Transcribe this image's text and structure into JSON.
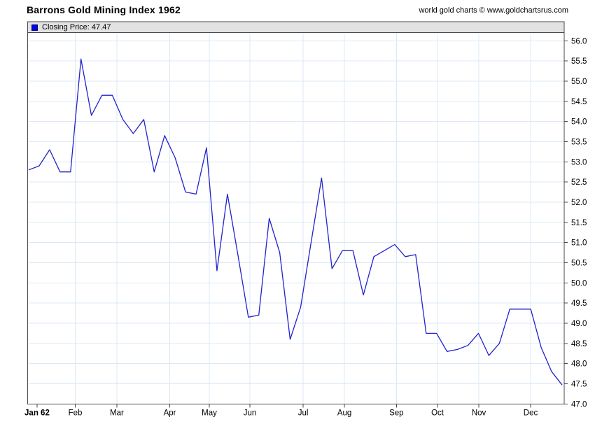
{
  "ui": {
    "title": "Barrons Gold Mining Index 1962",
    "credit": "world gold charts © www.goldchartsrus.com",
    "legend_label": "Closing Price: 47.47"
  },
  "chart_data": {
    "type": "line",
    "title": "Barrons Gold Mining Index 1962",
    "series": [
      {
        "name": "Closing Price",
        "last_value": 47.47,
        "values": [
          52.8,
          52.9,
          53.3,
          52.75,
          52.75,
          55.55,
          54.15,
          54.65,
          54.65,
          54.05,
          53.7,
          54.05,
          52.75,
          53.65,
          53.1,
          52.25,
          52.2,
          53.35,
          50.3,
          52.2,
          50.7,
          49.15,
          49.2,
          51.6,
          50.75,
          48.6,
          49.4,
          51.0,
          52.6,
          50.35,
          50.8,
          50.8,
          49.7,
          50.65,
          50.8,
          50.95,
          50.65,
          50.7,
          48.75,
          48.75,
          48.3,
          48.35,
          48.45,
          48.75,
          48.2,
          48.5,
          49.35,
          49.35,
          49.35,
          48.4,
          47.8,
          47.47
        ]
      }
    ],
    "x_unit": "weekly closes (52 weeks of 1962)",
    "x_tick_labels": [
      "Jan 62",
      "Feb",
      "Mar",
      "Apr",
      "May",
      "Jun",
      "Jul",
      "Aug",
      "Sep",
      "Oct",
      "Nov",
      "Dec"
    ],
    "x_tick_pos": [
      0.8,
      4.45,
      8.43,
      13.49,
      17.27,
      21.15,
      26.24,
      30.19,
      35.16,
      39.09,
      43.04,
      47.99
    ],
    "ylim": [
      47.0,
      56.0
    ],
    "y_step": 0.5,
    "y_tick_labels": [
      "47.0",
      "47.5",
      "48.0",
      "48.5",
      "49.0",
      "49.5",
      "50.0",
      "50.5",
      "51.0",
      "51.5",
      "52.0",
      "52.5",
      "53.0",
      "53.5",
      "54.0",
      "54.5",
      "55.0",
      "55.5",
      "56.0"
    ],
    "grid": true,
    "legend_position": "top strip inside plot",
    "colors": {
      "line": "#2222cc",
      "grid": "#dce8f4",
      "frame": "#4a4a4a",
      "legend_bg": "#e2e2e2",
      "swatch": "#0000ee",
      "tick": "#4a4a4a",
      "label": "#000000"
    }
  }
}
